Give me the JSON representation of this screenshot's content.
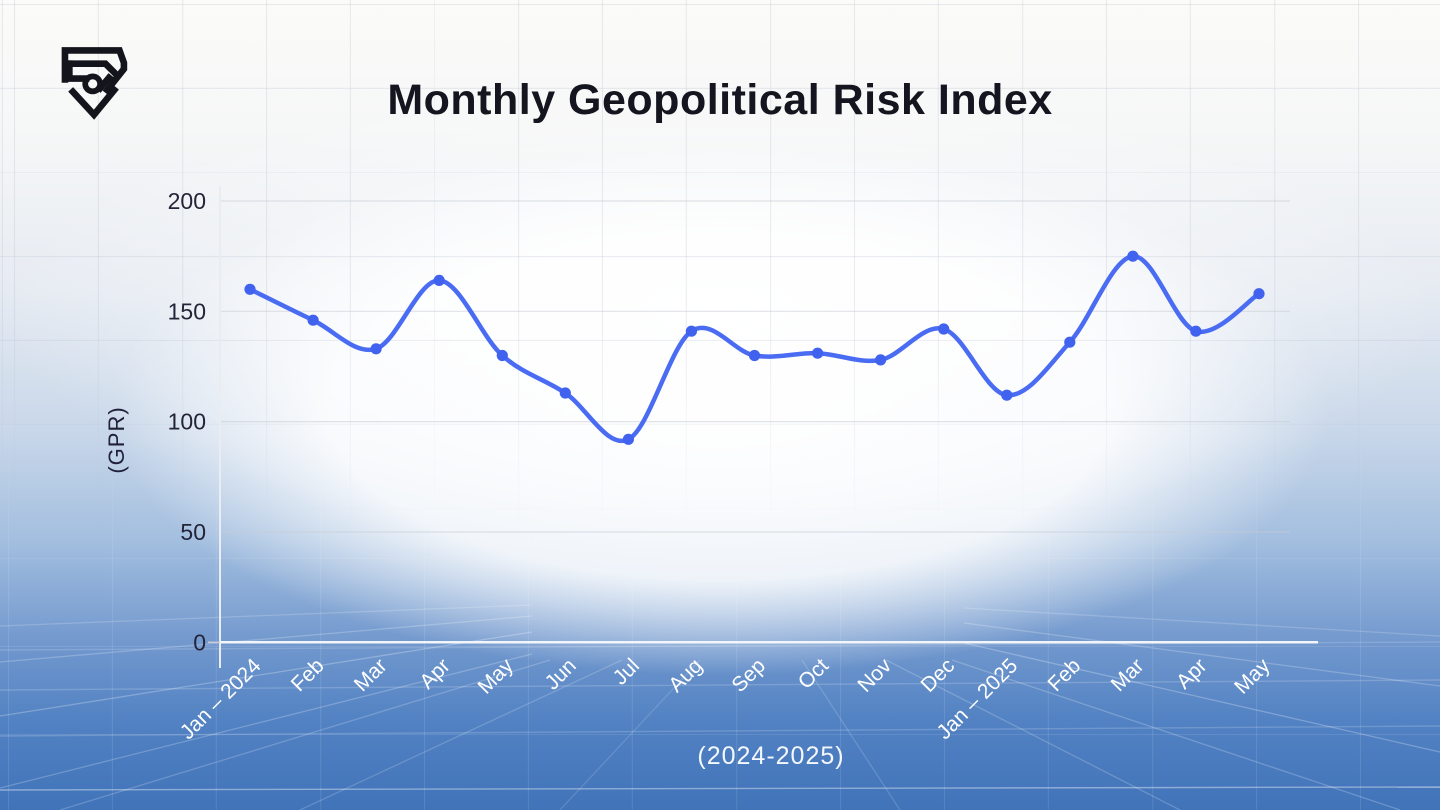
{
  "brand": {
    "logo_icon": "shield-security-logo"
  },
  "chart_data": {
    "type": "line",
    "title": "Monthly Geopolitical Risk Index",
    "xlabel": "(2024-2025)",
    "ylabel": "(GPR)",
    "categories": [
      "Jan – 2024",
      "Feb",
      "Mar",
      "Apr",
      "May",
      "Jun",
      "Jul",
      "Aug",
      "Sep",
      "Oct",
      "Nov",
      "Dec",
      "Jan – 2025",
      "Feb",
      "Mar",
      "Apr",
      "May"
    ],
    "values": [
      160,
      146,
      133,
      164,
      130,
      113,
      92,
      141,
      130,
      131,
      128,
      142,
      112,
      136,
      175,
      141,
      158
    ],
    "ylim": [
      0,
      200
    ],
    "yticks": [
      0,
      50,
      100,
      150,
      200
    ],
    "grid": "horizontal-gridlines",
    "legend": "none",
    "line_color": "#4a6cf2",
    "point_color": "#4062ee",
    "axis_color": "#f2f5f9",
    "gridline_color": "#c8ccd6",
    "tick_text_color": "#242438",
    "x_tick_text_color": "#ffffff"
  }
}
